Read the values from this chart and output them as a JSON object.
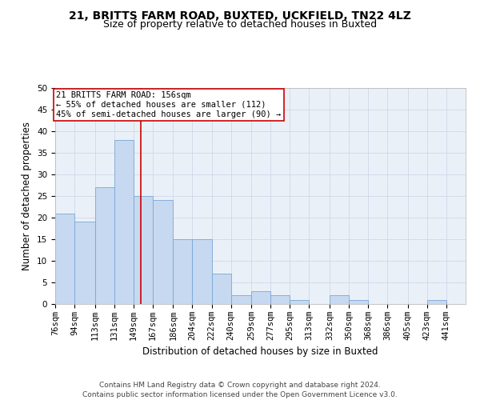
{
  "title1": "21, BRITTS FARM ROAD, BUXTED, UCKFIELD, TN22 4LZ",
  "title2": "Size of property relative to detached houses in Buxted",
  "xlabel": "Distribution of detached houses by size in Buxted",
  "ylabel": "Number of detached properties",
  "bin_labels": [
    "76sqm",
    "94sqm",
    "113sqm",
    "131sqm",
    "149sqm",
    "167sqm",
    "186sqm",
    "204sqm",
    "222sqm",
    "240sqm",
    "259sqm",
    "277sqm",
    "295sqm",
    "313sqm",
    "332sqm",
    "350sqm",
    "368sqm",
    "386sqm",
    "405sqm",
    "423sqm",
    "441sqm"
  ],
  "bin_edges": [
    76,
    94,
    113,
    131,
    149,
    167,
    186,
    204,
    222,
    240,
    259,
    277,
    295,
    313,
    332,
    350,
    368,
    386,
    405,
    423,
    441,
    459
  ],
  "counts": [
    21,
    19,
    27,
    38,
    25,
    24,
    15,
    15,
    7,
    2,
    3,
    2,
    1,
    0,
    2,
    1,
    0,
    0,
    0,
    1,
    0
  ],
  "bar_color": "#c6d9f0",
  "bar_edge_color": "#7ba7d4",
  "property_line_x": 156,
  "annotation_line1": "21 BRITTS FARM ROAD: 156sqm",
  "annotation_line2": "← 55% of detached houses are smaller (112)",
  "annotation_line3": "45% of semi-detached houses are larger (90) →",
  "annotation_box_color": "#ffffff",
  "annotation_box_edge_color": "#cc0000",
  "vertical_line_color": "#cc0000",
  "ylim": [
    0,
    50
  ],
  "yticks": [
    0,
    5,
    10,
    15,
    20,
    25,
    30,
    35,
    40,
    45,
    50
  ],
  "grid_color": "#d0d8e8",
  "background_color": "#eaf0f8",
  "footer": "Contains HM Land Registry data © Crown copyright and database right 2024.\nContains public sector information licensed under the Open Government Licence v3.0.",
  "title_fontsize": 10,
  "subtitle_fontsize": 9,
  "axis_label_fontsize": 8.5,
  "tick_fontsize": 7.5,
  "annotation_fontsize": 7.5,
  "footer_fontsize": 6.5
}
